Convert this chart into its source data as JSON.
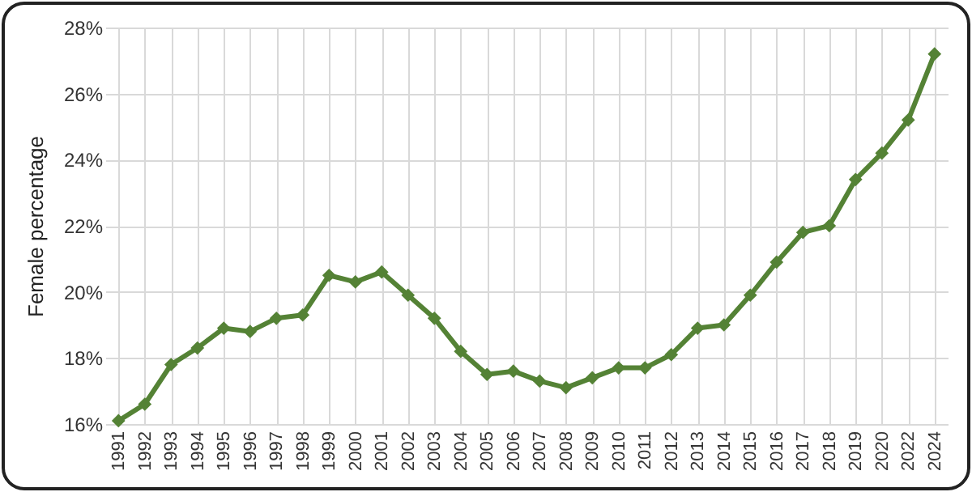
{
  "chart_data": {
    "type": "line",
    "ylabel": "Female percentage",
    "categories": [
      "1991",
      "1992",
      "1993",
      "1994",
      "1995",
      "1996",
      "1997",
      "1998",
      "1999",
      "2000",
      "2001",
      "2002",
      "2003",
      "2004",
      "2005",
      "2006",
      "2007",
      "2008",
      "2009",
      "2010",
      "2011",
      "2012",
      "2013",
      "2014",
      "2015",
      "2016",
      "2017",
      "2018",
      "2019",
      "2020",
      "2022",
      "2024"
    ],
    "series": [
      {
        "color": "#548235",
        "values": [
          16.1,
          16.6,
          17.8,
          18.3,
          18.9,
          18.8,
          19.2,
          19.3,
          20.5,
          20.3,
          20.6,
          19.9,
          19.2,
          18.2,
          17.5,
          17.6,
          17.3,
          17.1,
          17.4,
          17.7,
          17.7,
          18.1,
          18.9,
          19.0,
          19.9,
          20.9,
          21.8,
          22.0,
          23.4,
          24.2,
          25.2,
          27.2
        ]
      }
    ],
    "ylim": [
      16,
      28
    ],
    "yticks": [
      {
        "value": 16,
        "label": "16%"
      },
      {
        "value": 18,
        "label": "18%"
      },
      {
        "value": 20,
        "label": "20%"
      },
      {
        "value": 22,
        "label": "22%"
      },
      {
        "value": 24,
        "label": "24%"
      },
      {
        "value": 26,
        "label": "26%"
      },
      {
        "value": 28,
        "label": "28%"
      }
    ],
    "grid": true,
    "marker": "diamond",
    "line_style": "solid",
    "legend": false
  }
}
